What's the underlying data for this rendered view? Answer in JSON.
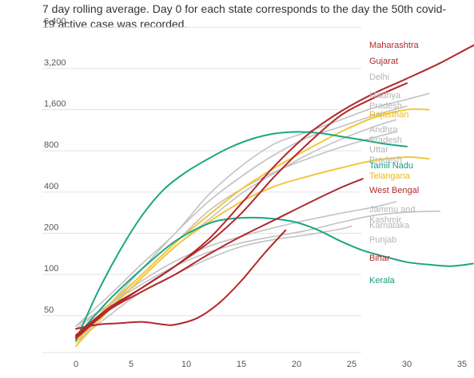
{
  "chart_data": {
    "type": "line",
    "subtitle": "7 day rolling average. Day 0 for each state corresponds to the day the 50th covid-19 active case was recorded.",
    "title": "",
    "xlabel": "",
    "ylabel": "",
    "y_scale": "log2",
    "xlim": [
      0,
      39
    ],
    "ylim": [
      28,
      7200
    ],
    "x_ticks": [
      0,
      5,
      10,
      15,
      20,
      25,
      30,
      35
    ],
    "y_ticks": [
      {
        "value": 50,
        "label": "50"
      },
      {
        "value": 100,
        "label": "100"
      },
      {
        "value": 200,
        "label": "200"
      },
      {
        "value": 400,
        "label": "400"
      },
      {
        "value": 800,
        "label": "800"
      },
      {
        "value": 1600,
        "label": "1,600"
      },
      {
        "value": 3200,
        "label": "3,200"
      },
      {
        "value": 6400,
        "label": "6,400"
      }
    ],
    "grid": "horizontal",
    "legend": "right, labels at line ends",
    "colors": {
      "red": "#b2282b",
      "yellow": "#f2c73a",
      "green": "#1aa784",
      "gray": "#c2c2c2"
    },
    "series": [
      {
        "name": "Maharashtra",
        "color": "red",
        "x": [
          0,
          3,
          6,
          9,
          12,
          15,
          18,
          21,
          24,
          27,
          30,
          33,
          36,
          39
        ],
        "y": [
          36,
          57,
          80,
          115,
          180,
          330,
          620,
          1050,
          1550,
          2100,
          2700,
          3500,
          4700,
          6200
        ]
      },
      {
        "name": "Gujarat",
        "color": "red",
        "x": [
          0,
          3,
          6,
          9,
          12,
          15,
          18,
          21,
          24,
          27,
          30
        ],
        "y": [
          34,
          55,
          80,
          115,
          170,
          280,
          520,
          900,
          1450,
          1950,
          2500
        ]
      },
      {
        "name": "Delhi",
        "color": "gray",
        "x": [
          0,
          3,
          6,
          9,
          12,
          15,
          18,
          21,
          24,
          27,
          30,
          32
        ],
        "y": [
          42,
          70,
          120,
          200,
          380,
          620,
          900,
          1100,
          1350,
          1650,
          1900,
          2100
        ]
      },
      {
        "name": "Madhya Pradesh",
        "color": "gray",
        "x": [
          0,
          3,
          6,
          9,
          12,
          15,
          18,
          21,
          24,
          27,
          30
        ],
        "y": [
          30,
          60,
          110,
          200,
          340,
          520,
          750,
          1000,
          1200,
          1450,
          1700
        ]
      },
      {
        "name": "Rajasthan",
        "color": "yellow",
        "x": [
          0,
          3,
          6,
          9,
          12,
          15,
          18,
          21,
          24,
          27,
          30,
          32
        ],
        "y": [
          32,
          60,
          100,
          170,
          270,
          420,
          600,
          820,
          1100,
          1400,
          1600,
          1600
        ]
      },
      {
        "name": "Andhra Pradesh",
        "color": "gray",
        "x": [
          0,
          3,
          6,
          9,
          12,
          15,
          18,
          21,
          24,
          27,
          29
        ],
        "y": [
          30,
          55,
          95,
          160,
          250,
          390,
          550,
          750,
          970,
          1200,
          1350
        ]
      },
      {
        "name": "Uttar Pradesh",
        "color": "gray",
        "x": [
          0,
          3,
          6,
          9,
          12,
          15,
          18,
          21,
          24,
          27,
          29
        ],
        "y": [
          34,
          58,
          100,
          170,
          290,
          420,
          560,
          700,
          850,
          1000,
          1100
        ]
      },
      {
        "name": "Tamil Nadu",
        "color": "green",
        "x": [
          0,
          2,
          4,
          6,
          8,
          10,
          12,
          14,
          16,
          18,
          20,
          22,
          24,
          26,
          28,
          30
        ],
        "y": [
          33,
          75,
          150,
          270,
          420,
          560,
          700,
          850,
          980,
          1070,
          1100,
          1080,
          1020,
          960,
          900,
          860
        ]
      },
      {
        "name": "Telangana",
        "color": "yellow",
        "x": [
          0,
          3,
          6,
          9,
          12,
          15,
          18,
          21,
          24,
          27,
          30,
          32
        ],
        "y": [
          30,
          55,
          95,
          160,
          240,
          340,
          440,
          520,
          600,
          680,
          720,
          700
        ]
      },
      {
        "name": "West Bengal",
        "color": "red",
        "x": [
          0,
          3,
          6,
          9,
          12,
          15,
          18,
          21,
          24,
          26
        ],
        "y": [
          35,
          55,
          75,
          100,
          140,
          190,
          250,
          330,
          430,
          500
        ]
      },
      {
        "name": "Jammu and Kashmir",
        "color": "gray",
        "x": [
          0,
          3,
          6,
          9,
          12,
          15,
          18,
          21,
          24,
          27,
          29
        ],
        "y": [
          40,
          60,
          90,
          125,
          160,
          190,
          220,
          250,
          280,
          310,
          340
        ]
      },
      {
        "name": "Karnataka",
        "color": "gray",
        "x": [
          0,
          3,
          6,
          9,
          12,
          15,
          18,
          21,
          24,
          27,
          30,
          33
        ],
        "y": [
          42,
          60,
          85,
          115,
          145,
          170,
          190,
          210,
          240,
          270,
          285,
          290
        ]
      },
      {
        "name": "Punjab",
        "color": "gray",
        "x": [
          0,
          3,
          6,
          9,
          12,
          15,
          18,
          21,
          24,
          25
        ],
        "y": [
          32,
          50,
          75,
          100,
          130,
          160,
          180,
          195,
          215,
          225
        ]
      },
      {
        "name": "Bihar",
        "color": "red",
        "x": [
          0,
          2,
          4,
          6,
          8,
          9,
          11,
          13,
          15,
          17,
          19
        ],
        "y": [
          40,
          43,
          44,
          45,
          43,
          43,
          48,
          62,
          90,
          140,
          210
        ]
      },
      {
        "name": "Kerala",
        "color": "green",
        "x": [
          0,
          3,
          6,
          9,
          12,
          14,
          16,
          18,
          20,
          22,
          24,
          26,
          28,
          30,
          32,
          34,
          36
        ],
        "y": [
          35,
          65,
          110,
          175,
          235,
          255,
          260,
          255,
          240,
          210,
          175,
          150,
          135,
          123,
          118,
          115,
          120
        ]
      }
    ]
  }
}
